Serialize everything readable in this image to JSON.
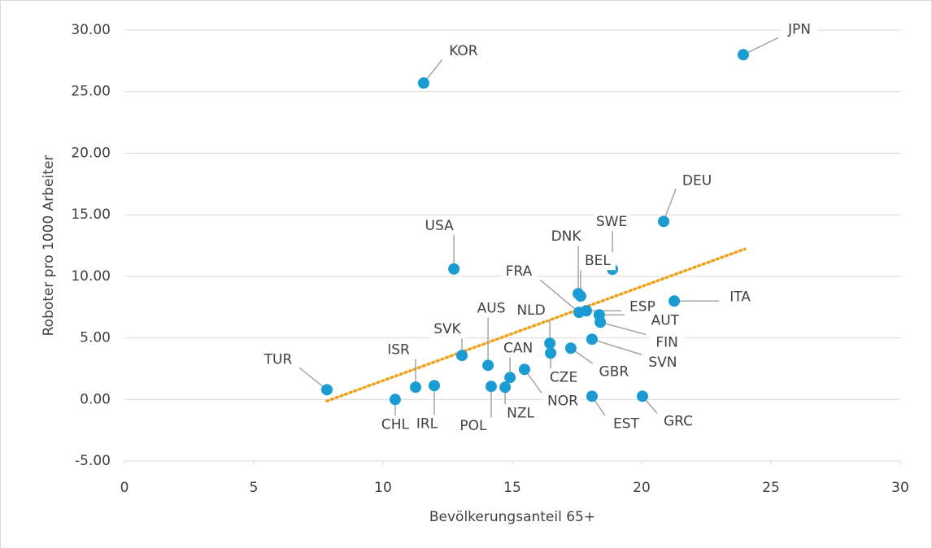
{
  "chart_data": {
    "type": "scatter",
    "x_label": "Bevölkerungsanteil 65+",
    "y_label": "Roboter pro 1000 Arbeiter",
    "labels": [
      "TUR",
      "CHL",
      "ISR",
      "IRL",
      "KOR",
      "SVK",
      "USA",
      "AUS",
      "POL",
      "NZL",
      "CAN",
      "NOR",
      "NLD",
      "CZE",
      "GBR",
      "SVN",
      "DNK",
      "BEL",
      "FRA",
      "ESP",
      "AUT",
      "FIN",
      "SWE",
      "DEU",
      "ITA",
      "JPN",
      "EST",
      "GRC"
    ],
    "x": [
      7.83,
      10.47,
      11.26,
      11.98,
      11.57,
      13.05,
      12.74,
      14.06,
      14.18,
      14.72,
      14.91,
      15.47,
      16.45,
      16.48,
      17.26,
      18.08,
      17.55,
      17.64,
      17.58,
      17.86,
      18.36,
      18.4,
      18.87,
      20.85,
      21.26,
      23.93,
      18.08,
      20.03
    ],
    "values": [
      0.79,
      0.0,
      0.99,
      1.12,
      25.7,
      3.57,
      10.6,
      2.77,
      1.06,
      0.99,
      1.78,
      2.44,
      4.56,
      3.76,
      4.16,
      4.89,
      8.59,
      8.39,
      7.07,
      7.2,
      6.87,
      6.27,
      10.57,
      14.46,
      7.99,
      28.0,
      0.26,
      0.26
    ],
    "color": "#1a9bd2",
    "trendline": {
      "x": [
        7.83,
        23.99
      ],
      "values": [
        -0.13,
        12.22
      ],
      "color": "#f0a21a"
    },
    "xlim": [
      0,
      30
    ],
    "xticks": [
      0,
      5,
      10,
      15,
      20,
      25,
      30
    ],
    "ylim": [
      -5,
      30
    ],
    "yticks": [
      {
        "value": -5,
        "label": "-5.00"
      },
      {
        "value": 0,
        "label": "0.00"
      },
      {
        "value": 5,
        "label": "5.00"
      },
      {
        "value": 10,
        "label": "10.00"
      },
      {
        "value": 15,
        "label": "15.00"
      },
      {
        "value": 20,
        "label": "20.00"
      },
      {
        "value": 25,
        "label": "25.00"
      },
      {
        "value": 30,
        "label": "30.00"
      }
    ],
    "grid": true
  }
}
